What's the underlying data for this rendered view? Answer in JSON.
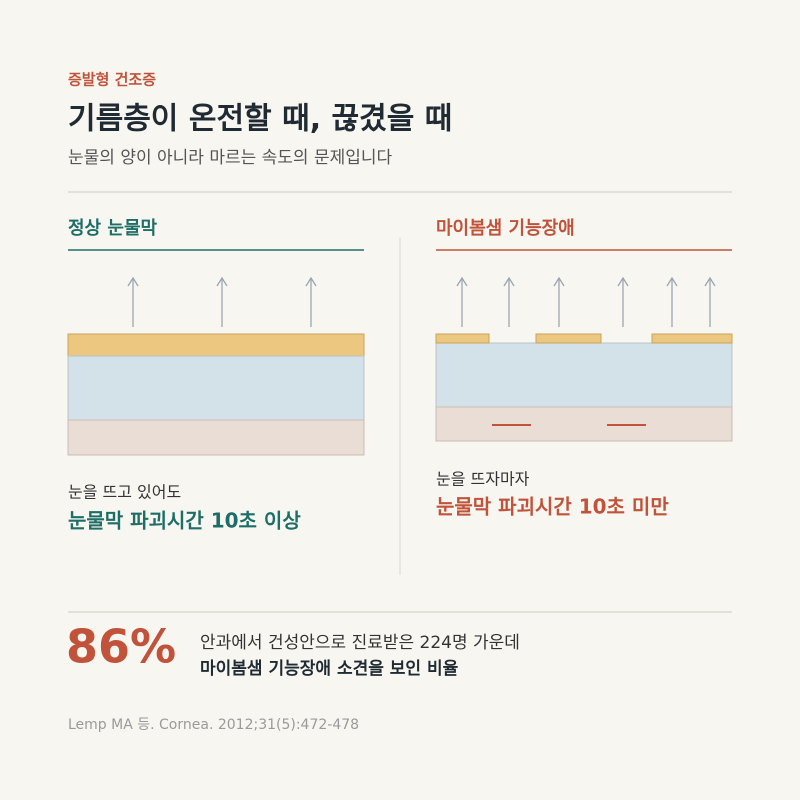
{
  "header": {
    "eyebrow": "증발형 건조증",
    "title": "기름층이 온전할 때, 끊겼을 때",
    "subtitle": "눈물의 양이 아니라 마르는 속도의 문제입니다"
  },
  "panels": [
    {
      "heading": "정상 눈물막",
      "caption": "눈을 뜨고 있어도",
      "result": "눈물막 파괴시간 10초 이상"
    },
    {
      "heading": "마이봄샘 기능장애",
      "caption": "눈을 뜨자마자",
      "result": "눈물막 파괴시간 10초 미만"
    }
  ],
  "stat": {
    "value": "86%",
    "line1": "안과에서 건성안으로 진료받은 224명 가운데",
    "line2": "마이봄샘 기능장애 소견을 보인 비율"
  },
  "citation": "Lemp MA 등. Cornea. 2012;31(5):472-478"
}
